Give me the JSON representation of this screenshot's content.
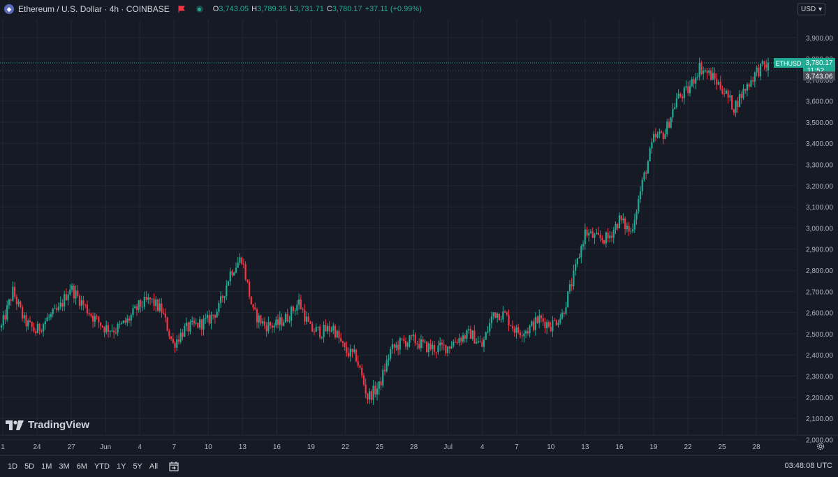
{
  "header": {
    "symbol": "Ethereum / U.S. Dollar · 4h · COINBASE",
    "ohlc": [
      {
        "k": "O",
        "v": "3,743.05"
      },
      {
        "k": "H",
        "v": "3,789.35"
      },
      {
        "k": "L",
        "v": "3,731.71"
      },
      {
        "k": "C",
        "v": "3,780.17"
      }
    ],
    "change": "+37.11 (+0.99%)"
  },
  "currency": "USD",
  "brand": "TradingView",
  "price_labels": {
    "ticker": "ETHUSD",
    "last": "3,780.17",
    "countdown": "11:52",
    "open_line": "3,743.06"
  },
  "bottom": {
    "ranges": [
      "1D",
      "5D",
      "1M",
      "3M",
      "6M",
      "YTD",
      "1Y",
      "5Y",
      "All"
    ],
    "clock": "03:48:08 UTC"
  },
  "colors": {
    "background": "#161a25",
    "up": "#22ab94",
    "down": "#f23645",
    "grid": "#232734",
    "text": "#d1d4dc"
  },
  "chart_data": {
    "type": "candlestick",
    "interval": "4h",
    "yticks": [
      "3,900.00",
      "3,800.00",
      "3,700.00",
      "3,600.00",
      "3,500.00",
      "3,400.00",
      "3,300.00",
      "3,200.00",
      "3,100.00",
      "3,000.00",
      "2,900.00",
      "2,800.00",
      "2,700.00",
      "2,600.00",
      "2,500.00",
      "2,400.00",
      "2,300.00",
      "2,200.00",
      "2,100.00",
      "2,000.00"
    ],
    "ylim": [
      1965,
      3985
    ],
    "xticks": [
      "1",
      "24",
      "27",
      "Jun",
      "4",
      "7",
      "10",
      "13",
      "16",
      "19",
      "22",
      "25",
      "28",
      "Jul",
      "4",
      "7",
      "10",
      "13",
      "16",
      "19",
      "22",
      "25",
      "28"
    ],
    "close_path": [
      [
        "May 21",
        2530
      ],
      [
        "May 22",
        2700
      ],
      [
        "May 23",
        2560
      ],
      [
        "May 24",
        2510
      ],
      [
        "May 25",
        2570
      ],
      [
        "May 26",
        2610
      ],
      [
        "May 27",
        2720
      ],
      [
        "May 28",
        2650
      ],
      [
        "May 29",
        2580
      ],
      [
        "May 30",
        2530
      ],
      [
        "May 31",
        2520
      ],
      [
        "Jun 1",
        2560
      ],
      [
        "Jun 2",
        2630
      ],
      [
        "Jun 3",
        2660
      ],
      [
        "Jun 4",
        2610
      ],
      [
        "Jun 5",
        2450
      ],
      [
        "Jun 6",
        2520
      ],
      [
        "Jun 7",
        2540
      ],
      [
        "Jun 8",
        2560
      ],
      [
        "Jun 9",
        2620
      ],
      [
        "Jun 10",
        2790
      ],
      [
        "Jun 11",
        2860
      ],
      [
        "Jun 12",
        2600
      ],
      [
        "Jun 13",
        2540
      ],
      [
        "Jun 14",
        2540
      ],
      [
        "Jun 15",
        2580
      ],
      [
        "Jun 16",
        2650
      ],
      [
        "Jun 17",
        2520
      ],
      [
        "Jun 18",
        2510
      ],
      [
        "Jun 19",
        2530
      ],
      [
        "Jun 20",
        2420
      ],
      [
        "Jun 21",
        2390
      ],
      [
        "Jun 22",
        2200
      ],
      [
        "Jun 23",
        2250
      ],
      [
        "Jun 24",
        2420
      ],
      [
        "Jun 25",
        2460
      ],
      [
        "Jun 26",
        2470
      ],
      [
        "Jun 27",
        2440
      ],
      [
        "Jun 28",
        2430
      ],
      [
        "Jun 29",
        2440
      ],
      [
        "Jun 30",
        2480
      ],
      [
        "Jul 1",
        2500
      ],
      [
        "Jul 2",
        2440
      ],
      [
        "Jul 3",
        2600
      ],
      [
        "Jul 4",
        2590
      ],
      [
        "Jul 5",
        2510
      ],
      [
        "Jul 6",
        2520
      ],
      [
        "Jul 7",
        2570
      ],
      [
        "Jul 8",
        2540
      ],
      [
        "Jul 9",
        2590
      ],
      [
        "Jul 10",
        2770
      ],
      [
        "Jul 11",
        2980
      ],
      [
        "Jul 12",
        2950
      ],
      [
        "Jul 13",
        2950
      ],
      [
        "Jul 14",
        3040
      ],
      [
        "Jul 15",
        2980
      ],
      [
        "Jul 16",
        3210
      ],
      [
        "Jul 17",
        3420
      ],
      [
        "Jul 18",
        3450
      ],
      [
        "Jul 19",
        3610
      ],
      [
        "Jul 20",
        3650
      ],
      [
        "Jul 21",
        3760
      ],
      [
        "Jul 22",
        3720
      ],
      [
        "Jul 23",
        3660
      ],
      [
        "Jul 24",
        3570
      ],
      [
        "Jul 25",
        3660
      ],
      [
        "Jul 26",
        3740
      ],
      [
        "Jul 27",
        3780
      ]
    ],
    "last_price": 3780.17,
    "open_price": 3743.06
  }
}
